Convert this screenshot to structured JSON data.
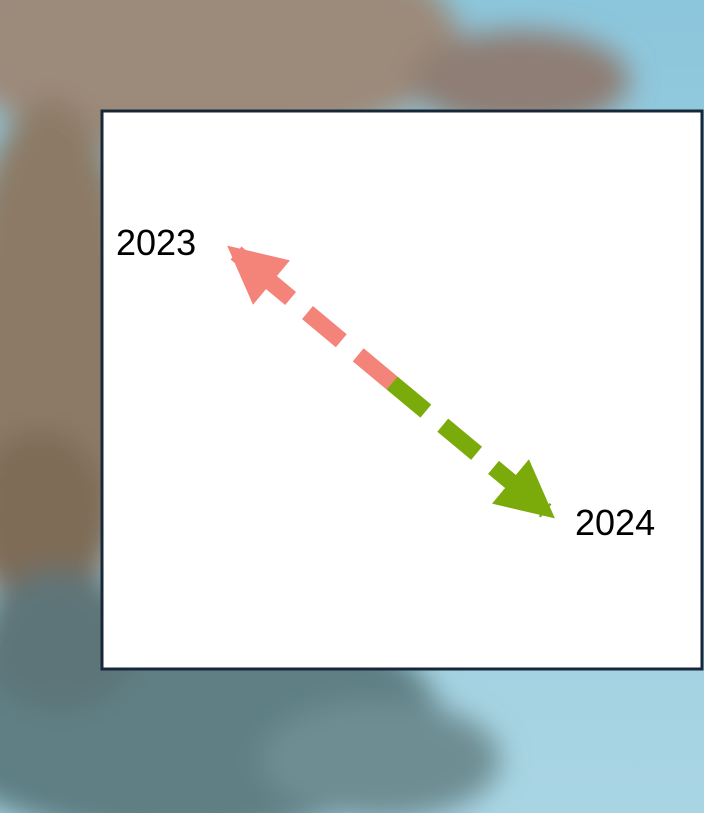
{
  "labels": {
    "start": "2023",
    "end": "2024"
  }
}
